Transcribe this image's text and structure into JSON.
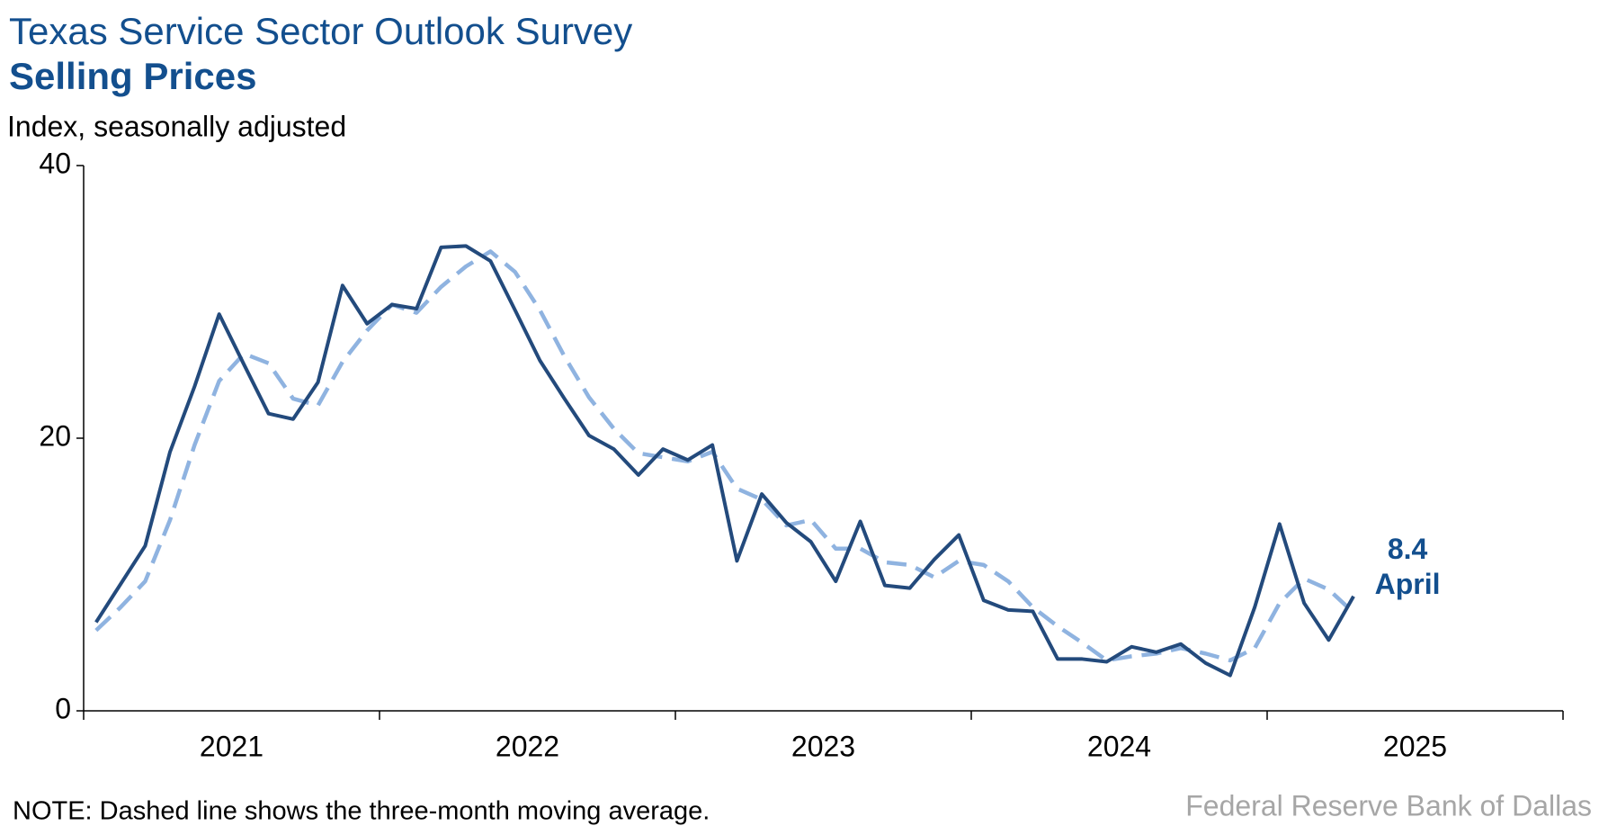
{
  "chart_data": {
    "type": "line",
    "title": "Texas Service Sector Outlook Survey",
    "subtitle": "Selling Prices",
    "y_label": "Index, seasonally adjusted",
    "note": "NOTE: Dashed line shows the three-month moving average.",
    "source": "Federal Reserve Bank of Dallas",
    "annotation": "April",
    "x": [
      2021.042,
      2021.125,
      2021.208,
      2021.292,
      2021.375,
      2021.458,
      2021.542,
      2021.625,
      2021.708,
      2021.792,
      2021.875,
      2021.958,
      2022.042,
      2022.125,
      2022.208,
      2022.292,
      2022.375,
      2022.458,
      2022.542,
      2022.625,
      2022.708,
      2022.792,
      2022.875,
      2022.958,
      2023.042,
      2023.125,
      2023.208,
      2023.292,
      2023.375,
      2023.458,
      2023.542,
      2023.625,
      2023.708,
      2023.792,
      2023.875,
      2023.958,
      2024.042,
      2024.125,
      2024.208,
      2024.292,
      2024.375,
      2024.458,
      2024.542,
      2024.625,
      2024.708,
      2024.792,
      2024.875,
      2024.958,
      2025.042,
      2025.125,
      2025.208,
      2025.292
    ],
    "series": [
      {
        "color": "#234a7c",
        "dashed": false,
        "values": [
          6.5,
          9.3,
          12.1,
          19.0,
          23.8,
          29.1,
          25.4,
          21.8,
          21.4,
          24.1,
          31.2,
          28.4,
          29.8,
          29.5,
          34.0,
          34.1,
          33.0,
          29.4,
          25.7,
          22.9,
          20.2,
          19.2,
          17.3,
          19.2,
          18.4,
          19.5,
          11.0,
          15.9,
          13.8,
          12.4,
          9.5,
          13.9,
          9.2,
          9.0,
          11.1,
          12.9,
          8.1,
          7.4,
          7.3,
          3.8,
          3.8,
          3.6,
          4.7,
          4.3,
          4.9,
          3.5,
          2.6,
          7.6,
          13.7,
          7.9,
          5.2,
          8.4
        ]
      },
      {
        "color": "#8fb3e0",
        "dashed": true,
        "values": [
          5.9,
          7.6,
          9.5,
          14.0,
          19.5,
          24.2,
          26.2,
          25.5,
          22.9,
          22.4,
          25.6,
          27.9,
          29.8,
          29.2,
          31.1,
          32.6,
          33.7,
          32.2,
          29.4,
          26.0,
          23.0,
          20.7,
          18.9,
          18.6,
          18.3,
          19.0,
          16.3,
          15.5,
          13.6,
          14.0,
          11.9,
          11.9,
          10.9,
          10.7,
          9.8,
          11.0,
          10.7,
          9.5,
          7.6,
          6.2,
          5.0,
          3.7,
          4.0,
          4.2,
          4.6,
          4.2,
          3.7,
          4.6,
          7.9,
          9.7,
          8.9,
          7.2
        ]
      }
    ],
    "xlim": [
      2021,
      2026
    ],
    "xticks": [
      {
        "value": 2021.5,
        "label": "2021"
      },
      {
        "value": 2022.5,
        "label": "2022"
      },
      {
        "value": 2023.5,
        "label": "2023"
      },
      {
        "value": 2024.5,
        "label": "2024"
      },
      {
        "value": 2025.5,
        "label": "2025"
      }
    ],
    "ylim": [
      0,
      40
    ],
    "yticks": [
      0,
      20,
      40
    ],
    "grid": false
  }
}
